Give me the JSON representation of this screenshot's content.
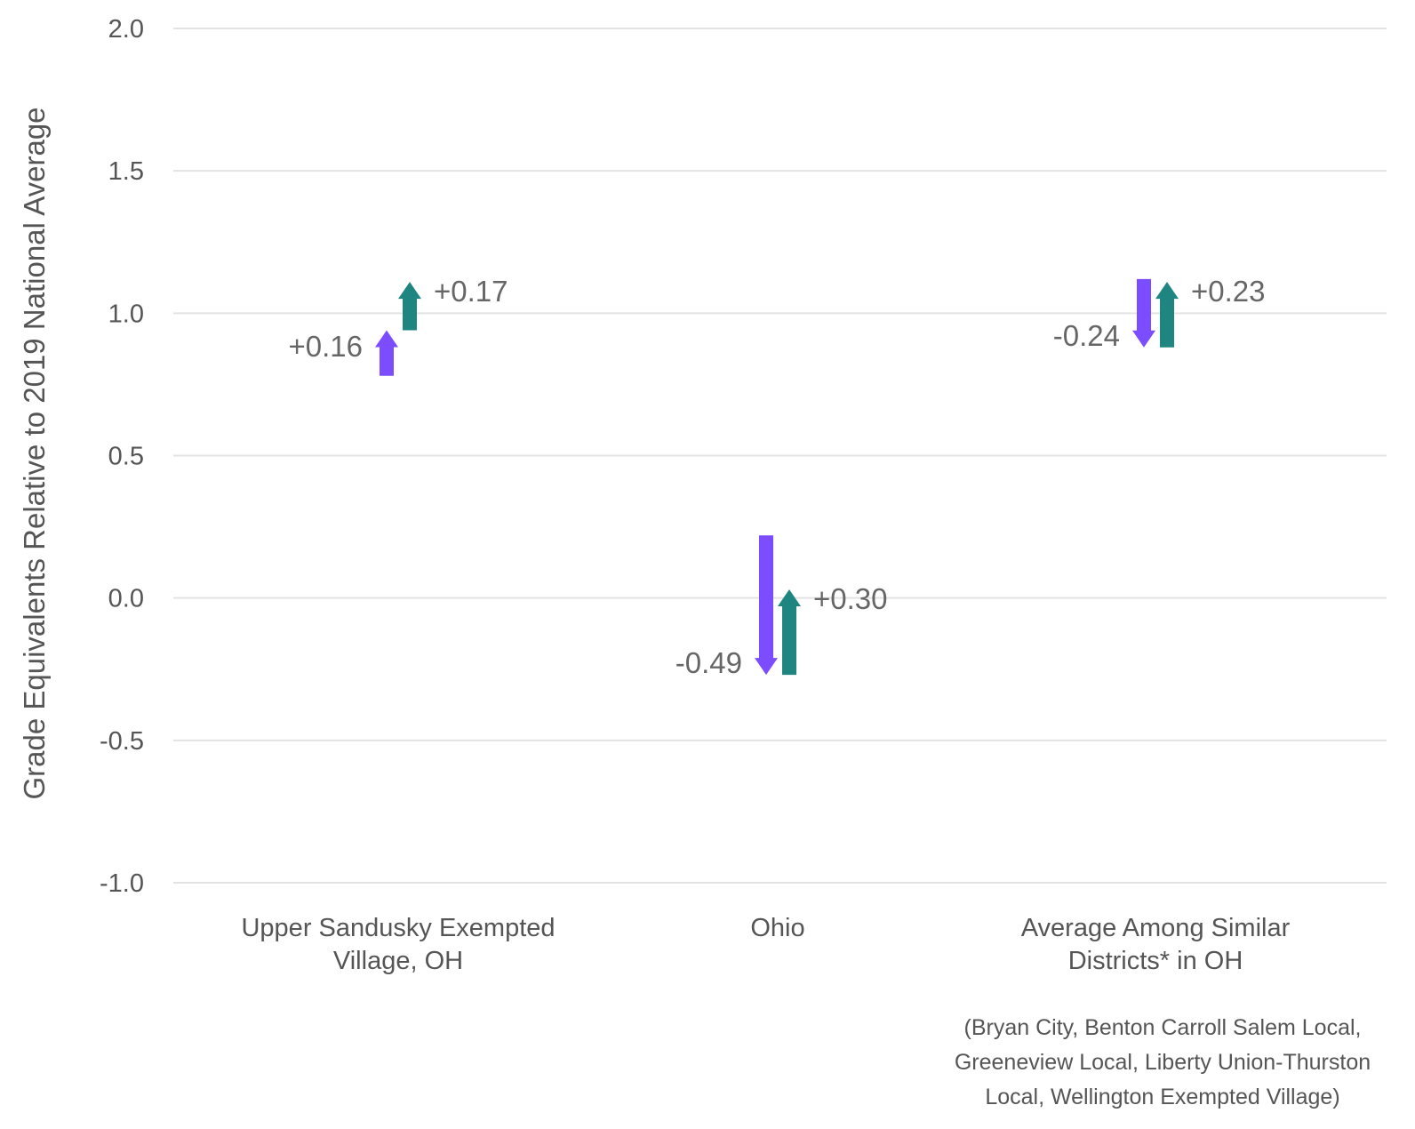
{
  "chart_data": {
    "type": "arrow",
    "ylabel": "Grade Equivalents Relative to 2019 National Average",
    "ylim": [
      -1.0,
      2.0
    ],
    "yticks": [
      "2.0",
      "1.5",
      "1.0",
      "0.5",
      "0.0",
      "-0.5",
      "-1.0"
    ],
    "grid": true,
    "colors": {
      "purple": "#7c4dff",
      "teal": "#1e8580"
    },
    "categories": [
      {
        "label_lines": [
          "Upper Sandusky Exempted",
          "Village, OH"
        ],
        "arrows": [
          {
            "color": "purple",
            "start": 0.78,
            "end": 0.94,
            "label": "+0.16"
          },
          {
            "color": "teal",
            "start": 0.94,
            "end": 1.11,
            "label": "+0.17"
          }
        ]
      },
      {
        "label_lines": [
          "Ohio"
        ],
        "arrows": [
          {
            "color": "purple",
            "start": 0.22,
            "end": -0.27,
            "label": "-0.49"
          },
          {
            "color": "teal",
            "start": -0.27,
            "end": 0.03,
            "label": "+0.30"
          }
        ]
      },
      {
        "label_lines": [
          "Average Among Similar",
          "Districts* in OH"
        ],
        "arrows": [
          {
            "color": "purple",
            "start": 1.12,
            "end": 0.88,
            "label": "-0.24"
          },
          {
            "color": "teal",
            "start": 0.88,
            "end": 1.11,
            "label": "+0.23"
          }
        ]
      }
    ],
    "footnote_lines": [
      "(Bryan City, Benton Carroll Salem Local,",
      "Greeneview Local, Liberty Union-Thurston",
      "Local, Wellington Exempted Village)"
    ]
  }
}
